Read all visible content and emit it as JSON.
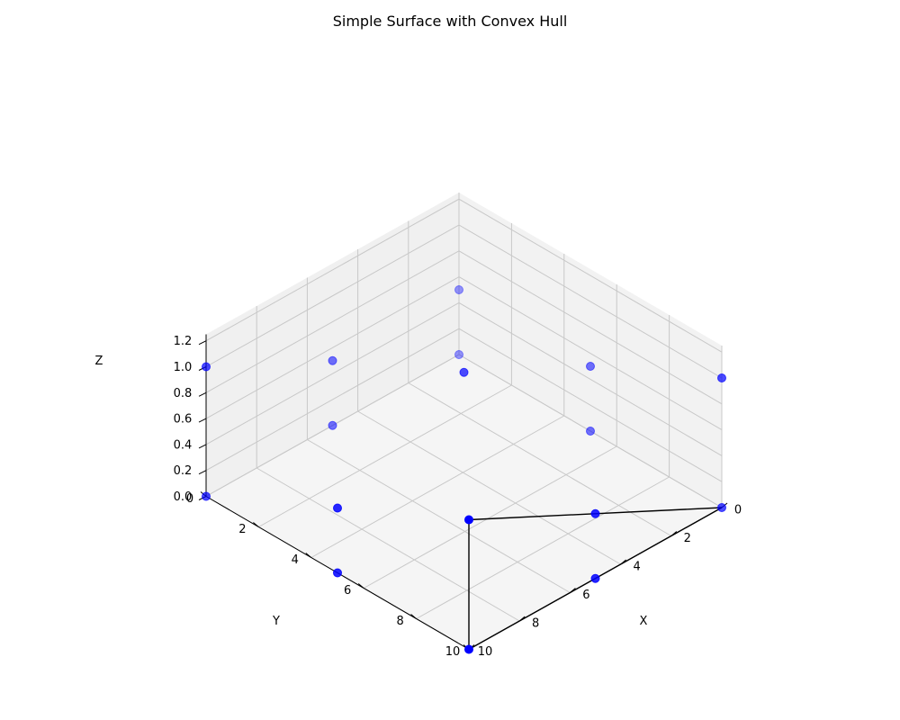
{
  "chart_data": {
    "type": "scatter",
    "projection": "3d",
    "title": "Simple Surface with Convex Hull",
    "xlabel": "X",
    "ylabel": "Y",
    "zlabel": "Z",
    "xlim": [
      0,
      10
    ],
    "ylim": [
      0,
      10
    ],
    "zlim": [
      0,
      1.25
    ],
    "xticks": [
      0,
      2,
      4,
      6,
      8,
      10
    ],
    "yticks": [
      0,
      2,
      4,
      6,
      8,
      10
    ],
    "zticks": [
      0.0,
      0.2,
      0.4,
      0.6,
      0.8,
      1.0,
      1.2
    ],
    "xtick_labels": [
      "0",
      "2",
      "4",
      "6",
      "8",
      "10"
    ],
    "ytick_labels": [
      "0",
      "2",
      "4",
      "6",
      "8",
      "10"
    ],
    "ztick_labels": [
      "0.0",
      "0.2",
      "0.4",
      "0.6",
      "0.8",
      "1.0",
      "1.2"
    ],
    "grid": true,
    "point_color": "#0000ff",
    "hull_color": "#000000",
    "points": [
      {
        "x": 0,
        "y": 0,
        "z": 0.5
      },
      {
        "x": 0,
        "y": 5,
        "z": 0.5
      },
      {
        "x": 0,
        "y": 10,
        "z": 0.0
      },
      {
        "x": 5,
        "y": 0,
        "z": 0.5
      },
      {
        "x": 5,
        "y": 5,
        "z": 1.0
      },
      {
        "x": 5,
        "y": 10,
        "z": 0.5
      },
      {
        "x": 10,
        "y": 0,
        "z": 0.0
      },
      {
        "x": 10,
        "y": 5,
        "z": 0.5
      },
      {
        "x": 10,
        "y": 10,
        "z": 1.0
      },
      {
        "x": 0,
        "y": 0,
        "z": 0.0
      },
      {
        "x": 0,
        "y": 5,
        "z": 0.0
      },
      {
        "x": 5,
        "y": 0,
        "z": 0.0
      },
      {
        "x": 10,
        "y": 10,
        "z": 0.0
      },
      {
        "x": 0,
        "y": 10,
        "z": 1.0
      },
      {
        "x": 10,
        "y": 0,
        "z": 1.0
      },
      {
        "x": 5,
        "y": 10,
        "z": 0.0
      },
      {
        "x": 10,
        "y": 5,
        "z": 0.0
      }
    ],
    "hull": [
      {
        "x": 0,
        "y": 10,
        "z": 0.0
      },
      {
        "x": 10,
        "y": 10,
        "z": 0.0
      },
      {
        "x": 10,
        "y": 10,
        "z": 1.0
      }
    ]
  }
}
